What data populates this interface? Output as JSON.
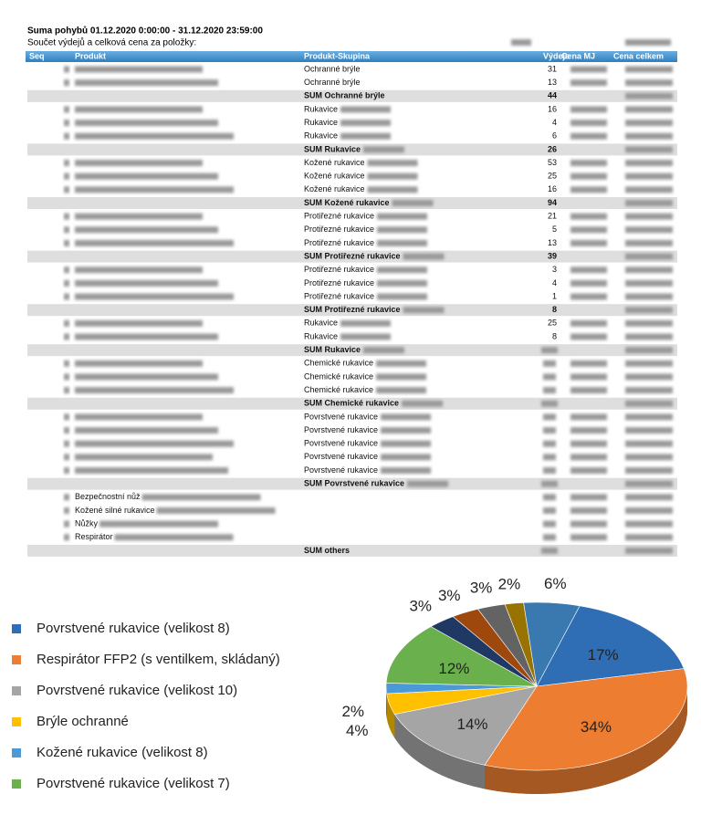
{
  "report": {
    "title": "Suma pohybů 01.12.2020 0:00:00 - 31.12.2020 23:59:00",
    "subtitle": "Součet výdejů a celková cena za položky:",
    "columns": [
      "Seq",
      "Produkt",
      "Produkt-Skupina",
      "Výdeje",
      "Cena MJ",
      "Cena celkem"
    ],
    "groups": [
      {
        "rows": [
          {
            "group": "Ochranné brýle",
            "vydeje": 31
          },
          {
            "group": "Ochranné brýle",
            "vydeje": 13
          }
        ],
        "sum": {
          "group": "SUM Ochranné brýle",
          "vydeje": 44
        }
      },
      {
        "rows": [
          {
            "group": "Rukavice",
            "vydeje": 16
          },
          {
            "group": "Rukavice",
            "vydeje": 4
          },
          {
            "group": "Rukavice",
            "vydeje": 6
          }
        ],
        "sum": {
          "group": "SUM Rukavice",
          "vydeje": 26
        }
      },
      {
        "rows": [
          {
            "group": "Kožené rukavice",
            "vydeje": 53
          },
          {
            "group": "Kožené rukavice",
            "vydeje": 25
          },
          {
            "group": "Kožené rukavice",
            "vydeje": 16
          }
        ],
        "sum": {
          "group": "SUM Kožené rukavice",
          "vydeje": 94
        }
      },
      {
        "rows": [
          {
            "group": "Protiřezné rukavice",
            "vydeje": 21
          },
          {
            "group": "Protiřezné rukavice",
            "vydeje": 5
          },
          {
            "group": "Protiřezné rukavice",
            "vydeje": 13
          }
        ],
        "sum": {
          "group": "SUM Protiřezné rukavice",
          "vydeje": 39
        }
      },
      {
        "rows": [
          {
            "group": "Protiřezné rukavice",
            "vydeje": 3
          },
          {
            "group": "Protiřezné rukavice",
            "vydeje": 4
          },
          {
            "group": "Protiřezné rukavice",
            "vydeje": 1
          }
        ],
        "sum": {
          "group": "SUM Protiřezné rukavice",
          "vydeje": 8
        }
      },
      {
        "rows": [
          {
            "group": "Rukavice",
            "vydeje": 25
          },
          {
            "group": "Rukavice",
            "vydeje": 8
          }
        ],
        "sum": {
          "group": "SUM Rukavice",
          "vydeje": null
        }
      },
      {
        "rows": [
          {
            "group": "Chemické rukavice",
            "vydeje": null
          },
          {
            "group": "Chemické rukavice",
            "vydeje": null
          },
          {
            "group": "Chemické rukavice",
            "vydeje": null
          }
        ],
        "sum": {
          "group": "SUM Chemické rukavice",
          "vydeje": null
        }
      },
      {
        "rows": [
          {
            "group": "Povrstvené rukavice",
            "vydeje": null
          },
          {
            "group": "Povrstvené rukavice",
            "vydeje": null
          },
          {
            "group": "Povrstvené rukavice",
            "vydeje": null
          },
          {
            "group": "Povrstvené rukavice",
            "vydeje": null
          },
          {
            "group": "Povrstvené rukavice",
            "vydeje": null
          }
        ],
        "sum": {
          "group": "SUM Povrstvené rukavice",
          "vydeje": null
        }
      },
      {
        "rows": [
          {
            "product": "Bezpečnostní nůž",
            "vydeje": null
          },
          {
            "product": "Kožené silné rukavice",
            "vydeje": null
          },
          {
            "product": "Nůžky",
            "vydeje": null
          },
          {
            "product": "Respirátor",
            "vydeje": null
          }
        ],
        "sum": {
          "group": "SUM others",
          "vydeje": null
        }
      }
    ]
  },
  "chart_data": {
    "type": "pie",
    "categories": [
      "Povrstvené rukavice (velikost 8)",
      "Respirátor FFP2 (s ventilkem, skládaný)",
      "Povrstvené rukavice  (velikost 10)",
      "Brýle ochranné",
      "Kožené rukavice (velikost 8)",
      "Povrstvené rukavice  (velikost 7)",
      null,
      null,
      null,
      null,
      null
    ],
    "values": [
      17,
      34,
      14,
      4,
      2,
      12,
      3,
      3,
      3,
      2,
      6
    ],
    "value_labels": [
      "17%",
      "34%",
      "14%",
      "4%",
      "2%",
      "12%",
      "3%",
      "3%",
      "3%",
      "2%",
      "6%"
    ],
    "colors": [
      "#2f6db5",
      "#ed7d31",
      "#a5a5a5",
      "#ffc000",
      "#4a9ad8",
      "#6ab04c",
      "#1f3864",
      "#9e480e",
      "#636363",
      "#997300",
      "#3a78b0"
    ]
  }
}
